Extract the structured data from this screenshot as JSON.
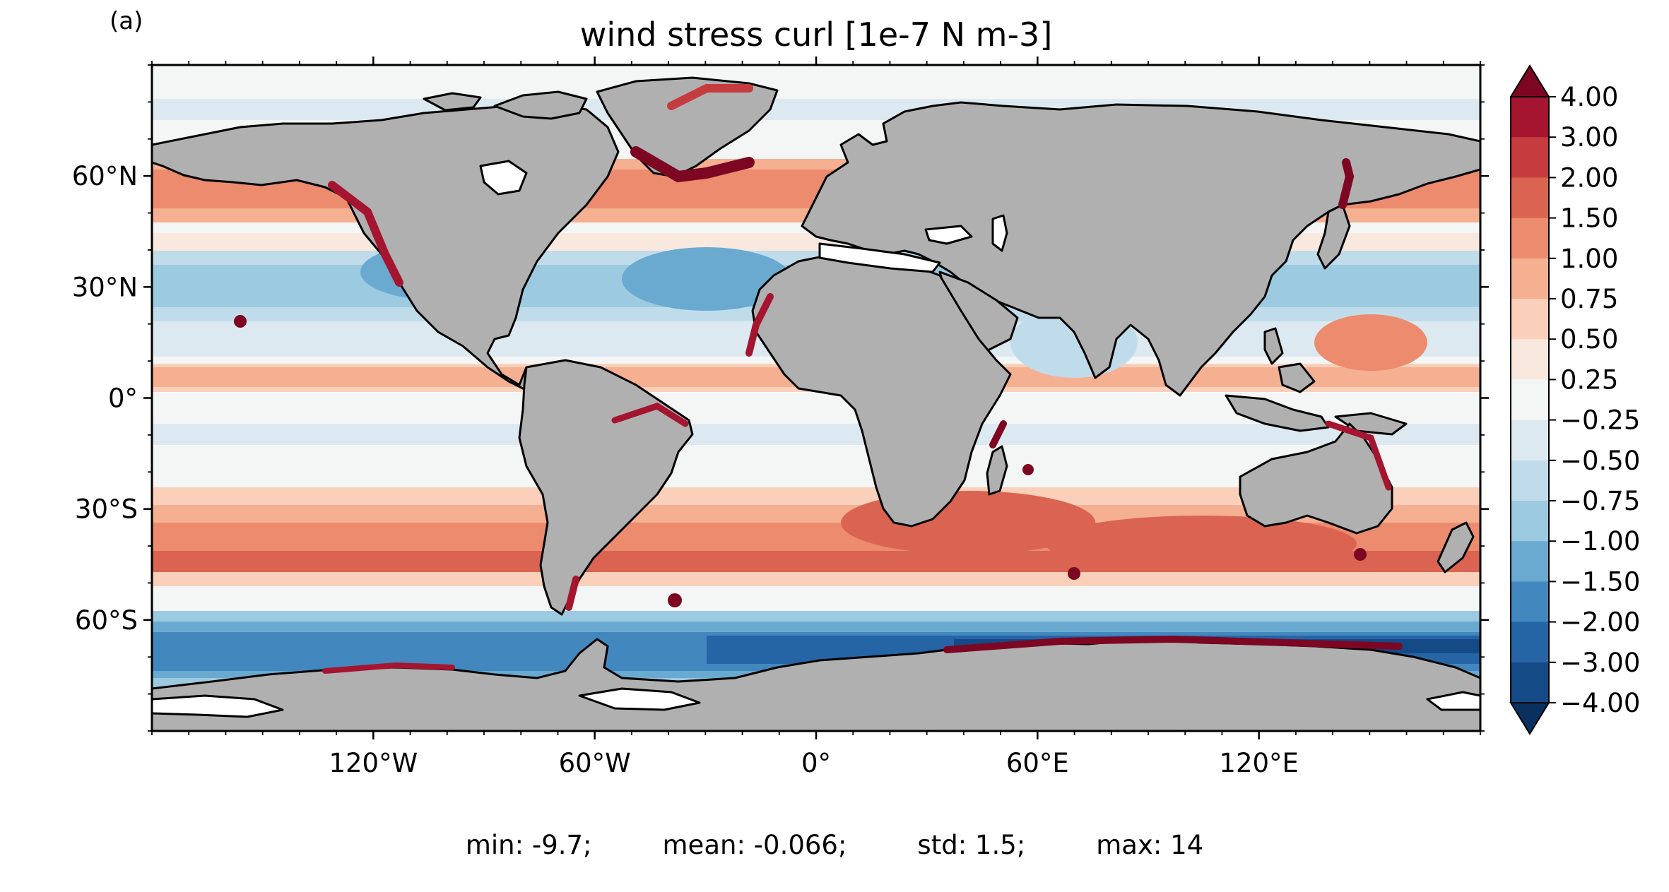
{
  "panel_label": "(a)",
  "title": "wind stress curl [1e-7 N m-3]",
  "axes": {
    "x_ticks": [
      "120°W",
      "60°W",
      "0°",
      "60°E",
      "120°E"
    ],
    "y_ticks": [
      "60°N",
      "30°N",
      "0°",
      "30°S",
      "60°S"
    ],
    "x_tick_values": [
      -120,
      -60,
      0,
      60,
      120
    ],
    "y_tick_values": [
      60,
      30,
      0,
      -30,
      -60
    ],
    "lon_range": [
      -180,
      180
    ],
    "lat_range": [
      -90,
      90
    ]
  },
  "colorbar": {
    "labels": [
      "4.00",
      "3.00",
      "2.00",
      "1.50",
      "1.00",
      "0.75",
      "0.50",
      "0.25",
      "−0.25",
      "−0.50",
      "−0.75",
      "−1.00",
      "−1.50",
      "−2.00",
      "−3.00",
      "−4.00"
    ],
    "colors": [
      "#7d0622",
      "#a51530",
      "#c53b3e",
      "#da6451",
      "#ec8b6d",
      "#f5b092",
      "#fad0ba",
      "#f9e8de",
      "#f4f6f6",
      "#dde9f1",
      "#c0dceb",
      "#9ccae1",
      "#6aaad1",
      "#4288bf",
      "#2565a6",
      "#144a86",
      "#0a3060"
    ],
    "extend": "both",
    "colormap": "RdBu_r"
  },
  "land_color": "#b0b0b0",
  "stats": {
    "min": "min: -9.7;",
    "mean": "mean: -0.066;",
    "std": "std: 1.5;",
    "max": "max: 14"
  }
}
